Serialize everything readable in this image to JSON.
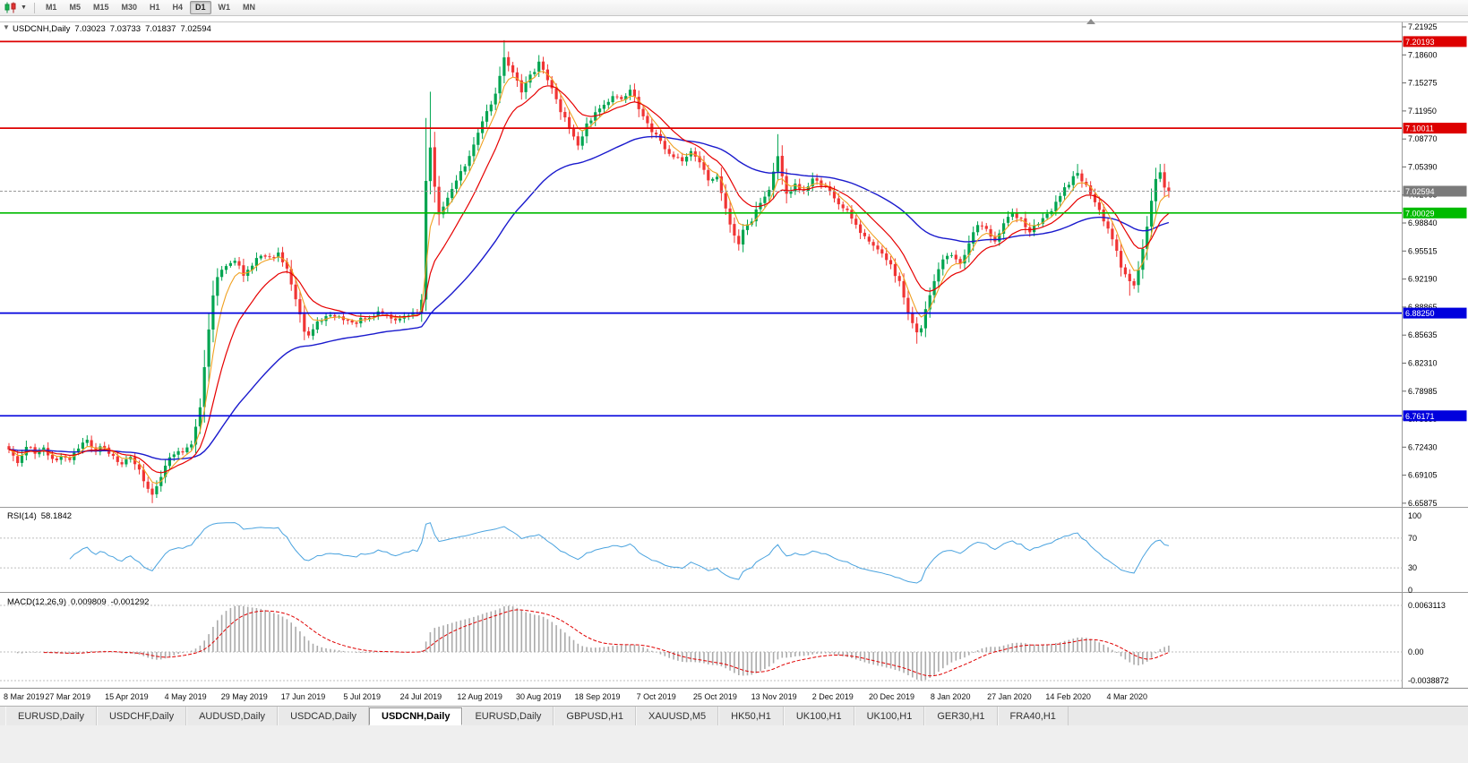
{
  "toolbar": {
    "timeframes": [
      {
        "label": "M1",
        "active": false
      },
      {
        "label": "M5",
        "active": false
      },
      {
        "label": "M15",
        "active": false
      },
      {
        "label": "M30",
        "active": false
      },
      {
        "label": "H1",
        "active": false
      },
      {
        "label": "H4",
        "active": false
      },
      {
        "label": "D1",
        "active": true
      },
      {
        "label": "W1",
        "active": false
      },
      {
        "label": "MN",
        "active": false
      }
    ]
  },
  "chart": {
    "symbol_timeframe": "USDCNH,Daily",
    "ohlc": {
      "open": "7.03023",
      "high": "7.03733",
      "low": "7.01837",
      "close": "7.02594"
    },
    "price_axis": {
      "top_value": 7.21925,
      "bottom_value": 6.65875,
      "ticks": [
        "7.21925",
        "7.18600",
        "7.15275",
        "7.11950",
        "7.08770",
        "7.05390",
        "7.02065",
        "6.98840",
        "6.95515",
        "6.92190",
        "6.88865",
        "6.85635",
        "6.82310",
        "6.78985",
        "6.75660",
        "6.72430",
        "6.69105",
        "6.65875"
      ]
    },
    "levels": [
      {
        "value": "7.20193",
        "price": 7.20193,
        "color": "#dd0000"
      },
      {
        "value": "7.10011",
        "price": 7.10011,
        "color": "#dd0000"
      },
      {
        "value": "7.00029",
        "price": 7.00029,
        "color": "#00bb00"
      },
      {
        "value": "6.88250",
        "price": 6.8825,
        "color": "#0000dd"
      },
      {
        "value": "6.76171",
        "price": 6.76171,
        "color": "#0000dd"
      }
    ],
    "current_price": {
      "value": "7.02594",
      "price": 7.02594,
      "color": "#7a7a7a"
    },
    "dates": [
      "8 Mar 2019",
      "27 Mar 2019",
      "15 Apr 2019",
      "4 May 2019",
      "29 May 2019",
      "17 Jun 2019",
      "5 Jul 2019",
      "24 Jul 2019",
      "12 Aug 2019",
      "30 Aug 2019",
      "18 Sep 2019",
      "7 Oct 2019",
      "25 Oct 2019",
      "13 Nov 2019",
      "2 Dec 2019",
      "20 Dec 2019",
      "8 Jan 2020",
      "27 Jan 2020",
      "14 Feb 2020",
      "4 Mar 2020"
    ]
  },
  "rsi": {
    "name": "RSI(14)",
    "value": "58.1842",
    "axis_labels": [
      "100",
      "70",
      "30",
      "0"
    ],
    "levels": [
      70,
      30
    ],
    "color": "#4aa3df"
  },
  "macd": {
    "name": "MACD(12,26,9)",
    "value_main": "0.009809",
    "value_signal": "-0.001292",
    "axis_labels": [
      "0.0063113",
      "0.00",
      "-0.0038872"
    ]
  },
  "tabs": [
    {
      "label": "EURUSD,Daily",
      "active": false
    },
    {
      "label": "USDCHF,Daily",
      "active": false
    },
    {
      "label": "AUDUSD,Daily",
      "active": false
    },
    {
      "label": "USDCAD,Daily",
      "active": false
    },
    {
      "label": "USDCNH,Daily",
      "active": true
    },
    {
      "label": "EURUSD,Daily",
      "active": false
    },
    {
      "label": "GBPUSD,H1",
      "active": false
    },
    {
      "label": "XAUUSD,M5",
      "active": false
    },
    {
      "label": "HK50,H1",
      "active": false
    },
    {
      "label": "UK100,H1",
      "active": false
    },
    {
      "label": "UK100,H1",
      "active": false
    },
    {
      "label": "GER30,H1",
      "active": false
    },
    {
      "label": "FRA40,H1",
      "active": false
    }
  ],
  "chart_data": {
    "type": "candlestick",
    "symbol": "USDCNH",
    "timeframe": "D1",
    "count": 268,
    "price_range": [
      6.65875,
      7.21925
    ],
    "colors": {
      "bull": "#00a551",
      "bear": "#f03434"
    },
    "x_labels": [
      "8 Mar 2019",
      "27 Mar 2019",
      "15 Apr 2019",
      "4 May 2019",
      "29 May 2019",
      "17 Jun 2019",
      "5 Jul 2019",
      "24 Jul 2019",
      "12 Aug 2019",
      "30 Aug 2019",
      "18 Sep 2019",
      "7 Oct 2019",
      "25 Oct 2019",
      "13 Nov 2019",
      "2 Dec 2019",
      "20 Dec 2019",
      "8 Jan 2020",
      "27 Jan 2020",
      "14 Feb 2020",
      "4 Mar 2020"
    ],
    "anchors": [
      [
        0,
        6.722
      ],
      [
        2,
        6.706
      ],
      [
        4,
        6.728
      ],
      [
        6,
        6.716
      ],
      [
        8,
        6.726
      ],
      [
        10,
        6.708
      ],
      [
        12,
        6.716
      ],
      [
        14,
        6.712
      ],
      [
        16,
        6.726
      ],
      [
        18,
        6.734
      ],
      [
        20,
        6.72
      ],
      [
        22,
        6.726
      ],
      [
        24,
        6.713
      ],
      [
        26,
        6.706
      ],
      [
        28,
        6.713
      ],
      [
        30,
        6.696
      ],
      [
        32,
        6.674
      ],
      [
        33,
        6.667
      ],
      [
        34,
        6.681
      ],
      [
        36,
        6.704
      ],
      [
        38,
        6.717
      ],
      [
        40,
        6.721
      ],
      [
        42,
        6.727
      ],
      [
        44,
        6.77
      ],
      [
        45,
        6.818
      ],
      [
        46,
        6.866
      ],
      [
        47,
        6.904
      ],
      [
        48,
        6.926
      ],
      [
        50,
        6.937
      ],
      [
        52,
        6.944
      ],
      [
        54,
        6.928
      ],
      [
        56,
        6.941
      ],
      [
        58,
        6.951
      ],
      [
        60,
        6.947
      ],
      [
        62,
        6.954
      ],
      [
        64,
        6.935
      ],
      [
        66,
        6.897
      ],
      [
        68,
        6.862
      ],
      [
        69,
        6.855
      ],
      [
        71,
        6.873
      ],
      [
        74,
        6.881
      ],
      [
        77,
        6.875
      ],
      [
        80,
        6.872
      ],
      [
        83,
        6.879
      ],
      [
        86,
        6.883
      ],
      [
        89,
        6.876
      ],
      [
        92,
        6.878
      ],
      [
        94,
        6.884
      ],
      [
        95,
        6.9
      ],
      [
        96,
        7.04
      ],
      [
        97,
        7.08
      ],
      [
        98,
        7.03
      ],
      [
        99,
        6.998
      ],
      [
        100,
        7.006
      ],
      [
        102,
        7.028
      ],
      [
        104,
        7.048
      ],
      [
        106,
        7.068
      ],
      [
        108,
        7.096
      ],
      [
        110,
        7.118
      ],
      [
        112,
        7.14
      ],
      [
        114,
        7.183
      ],
      [
        116,
        7.168
      ],
      [
        118,
        7.143
      ],
      [
        120,
        7.162
      ],
      [
        122,
        7.176
      ],
      [
        124,
        7.156
      ],
      [
        126,
        7.133
      ],
      [
        128,
        7.11
      ],
      [
        130,
        7.09
      ],
      [
        131,
        7.081
      ],
      [
        133,
        7.103
      ],
      [
        135,
        7.117
      ],
      [
        137,
        7.127
      ],
      [
        139,
        7.14
      ],
      [
        141,
        7.133
      ],
      [
        143,
        7.147
      ],
      [
        145,
        7.123
      ],
      [
        147,
        7.103
      ],
      [
        149,
        7.091
      ],
      [
        151,
        7.077
      ],
      [
        153,
        7.067
      ],
      [
        155,
        7.061
      ],
      [
        157,
        7.071
      ],
      [
        159,
        7.057
      ],
      [
        161,
        7.041
      ],
      [
        163,
        7.04
      ],
      [
        164,
        7.025
      ],
      [
        165,
        7.005
      ],
      [
        166,
        6.985
      ],
      [
        167,
        6.972
      ],
      [
        168,
        6.966
      ],
      [
        169,
        6.978
      ],
      [
        171,
        6.992
      ],
      [
        173,
        7.012
      ],
      [
        175,
        7.028
      ],
      [
        177,
        7.068
      ],
      [
        178,
        7.045
      ],
      [
        179,
        7.022
      ],
      [
        181,
        7.034
      ],
      [
        183,
        7.027
      ],
      [
        185,
        7.042
      ],
      [
        187,
        7.032
      ],
      [
        189,
        7.028
      ],
      [
        191,
        7.012
      ],
      [
        193,
        7.002
      ],
      [
        195,
        6.985
      ],
      [
        197,
        6.972
      ],
      [
        199,
        6.96
      ],
      [
        201,
        6.95
      ],
      [
        203,
        6.938
      ],
      [
        205,
        6.92
      ],
      [
        207,
        6.885
      ],
      [
        209,
        6.857
      ],
      [
        210,
        6.865
      ],
      [
        211,
        6.888
      ],
      [
        213,
        6.922
      ],
      [
        215,
        6.946
      ],
      [
        217,
        6.953
      ],
      [
        219,
        6.938
      ],
      [
        221,
        6.967
      ],
      [
        223,
        6.986
      ],
      [
        225,
        6.98
      ],
      [
        227,
        6.968
      ],
      [
        229,
        6.99
      ],
      [
        231,
        7.002
      ],
      [
        233,
        6.992
      ],
      [
        235,
        6.978
      ],
      [
        237,
        6.988
      ],
      [
        239,
        6.998
      ],
      [
        241,
        7.012
      ],
      [
        243,
        7.028
      ],
      [
        245,
        7.042
      ],
      [
        246,
        7.048
      ],
      [
        248,
        7.032
      ],
      [
        250,
        7.012
      ],
      [
        252,
        6.992
      ],
      [
        254,
        6.972
      ],
      [
        256,
        6.937
      ],
      [
        258,
        6.922
      ],
      [
        259,
        6.916
      ],
      [
        260,
        6.932
      ],
      [
        261,
        6.955
      ],
      [
        262,
        6.985
      ],
      [
        263,
        7.012
      ],
      [
        264,
        7.038
      ],
      [
        265,
        7.048
      ],
      [
        266,
        7.03023
      ],
      [
        267,
        7.02594
      ]
    ],
    "wick_overrides": {
      "33": {
        "l": 6.659
      },
      "96": {
        "h": 7.112,
        "l": 6.885
      },
      "97": {
        "h": 7.143
      },
      "114": {
        "h": 7.2035
      },
      "177": {
        "h": 7.093
      },
      "209": {
        "l": 6.8465
      },
      "246": {
        "h": 7.058
      },
      "258": {
        "l": 6.903
      },
      "265": {
        "h": 7.058
      }
    },
    "last_candle": {
      "open": 7.03023,
      "high": 7.03733,
      "low": 7.01837,
      "close": 7.02594
    },
    "moving_averages": [
      {
        "period": 5,
        "type": "ema",
        "color": "#f0a020"
      },
      {
        "period": 13,
        "type": "ema",
        "color": "#e60000"
      },
      {
        "period": 50,
        "type": "ema",
        "color": "#1a1acd"
      }
    ],
    "horizontal_lines": [
      7.20193,
      7.10011,
      7.00029,
      6.8825,
      6.76171
    ],
    "indicators": [
      {
        "name": "RSI",
        "period": 14,
        "current": 58.1842
      },
      {
        "name": "MACD",
        "fast": 12,
        "slow": 26,
        "signal": 9,
        "current_macd": 0.009809,
        "current_signal": -0.001292
      }
    ]
  }
}
